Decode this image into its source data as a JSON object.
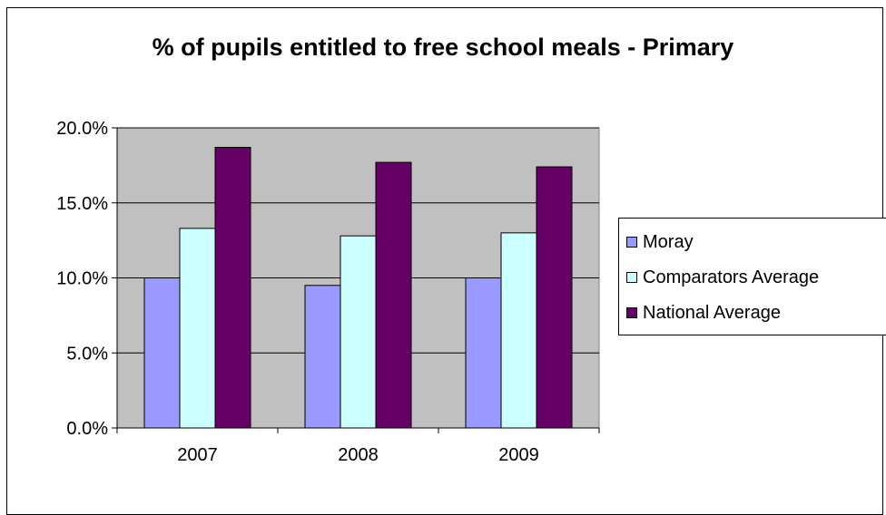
{
  "chart_data": {
    "type": "bar",
    "title": "% of pupils entitled to free school meals - Primary",
    "categories": [
      "2007",
      "2008",
      "2009"
    ],
    "series": [
      {
        "name": "Moray",
        "values": [
          10.0,
          9.5,
          10.0
        ],
        "color": "#9999FF"
      },
      {
        "name": "Comparators Average",
        "values": [
          13.3,
          12.8,
          13.0
        ],
        "color": "#CCFFFF"
      },
      {
        "name": "National Average",
        "values": [
          18.7,
          17.7,
          17.4
        ],
        "color": "#660066"
      }
    ],
    "ylim": [
      0,
      20
    ],
    "yticks": [
      "0.0%",
      "5.0%",
      "10.0%",
      "15.0%",
      "20.0%"
    ],
    "grid": true,
    "plot_background": "#C0C0C0",
    "legend_position": "right"
  }
}
